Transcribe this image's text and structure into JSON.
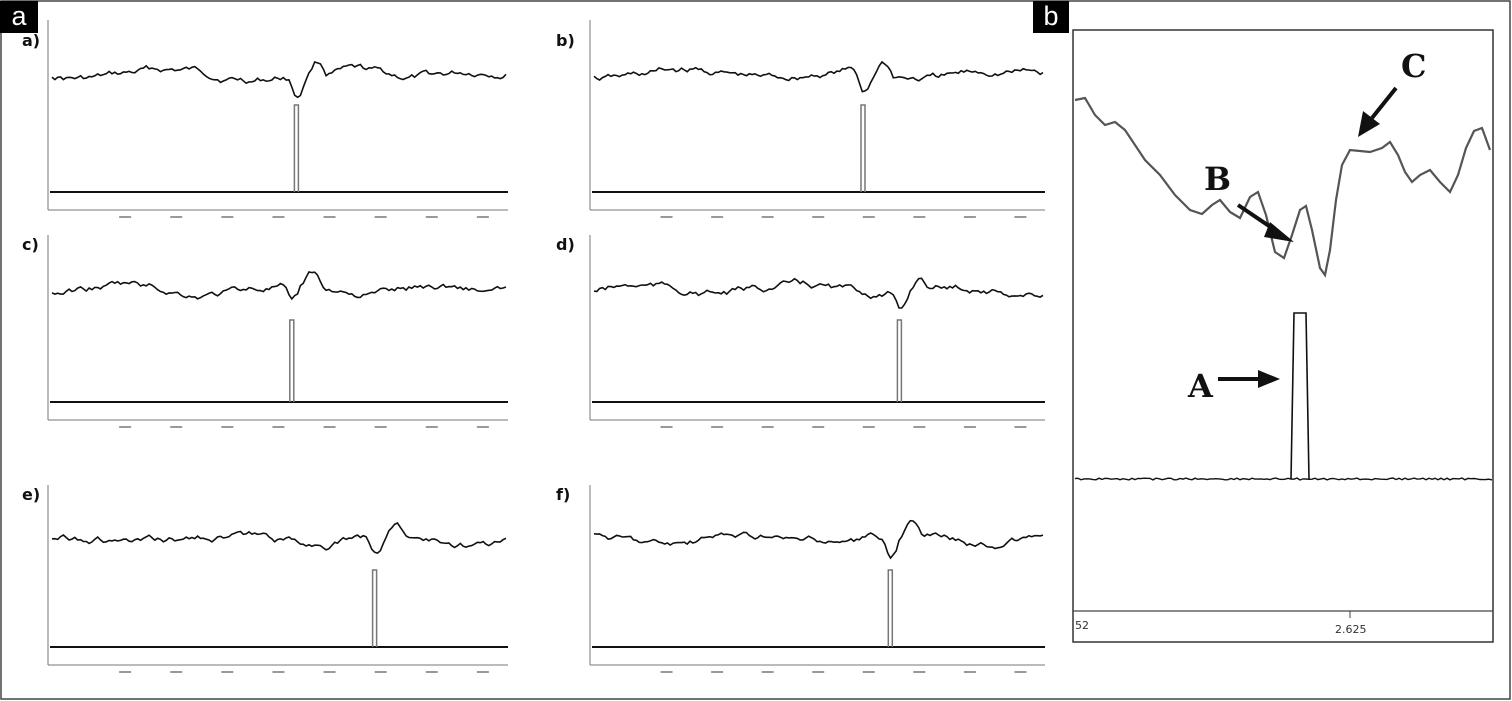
{
  "figure": {
    "panel_a_tag": "a",
    "panel_b_tag": "b"
  },
  "panel_a": {
    "subplots": [
      {
        "label": "a)"
      },
      {
        "label": "b)"
      },
      {
        "label": "c)"
      },
      {
        "label": "d)"
      },
      {
        "label": "e)"
      },
      {
        "label": "f)"
      }
    ]
  },
  "panel_b": {
    "annotations": [
      {
        "label": "A"
      },
      {
        "label": "B"
      },
      {
        "label": "C"
      }
    ],
    "axis_ticks": [
      "52",
      "2.625"
    ]
  },
  "colors": {
    "trace": "#111111",
    "frame": "#333333",
    "axis": "#444444"
  }
}
